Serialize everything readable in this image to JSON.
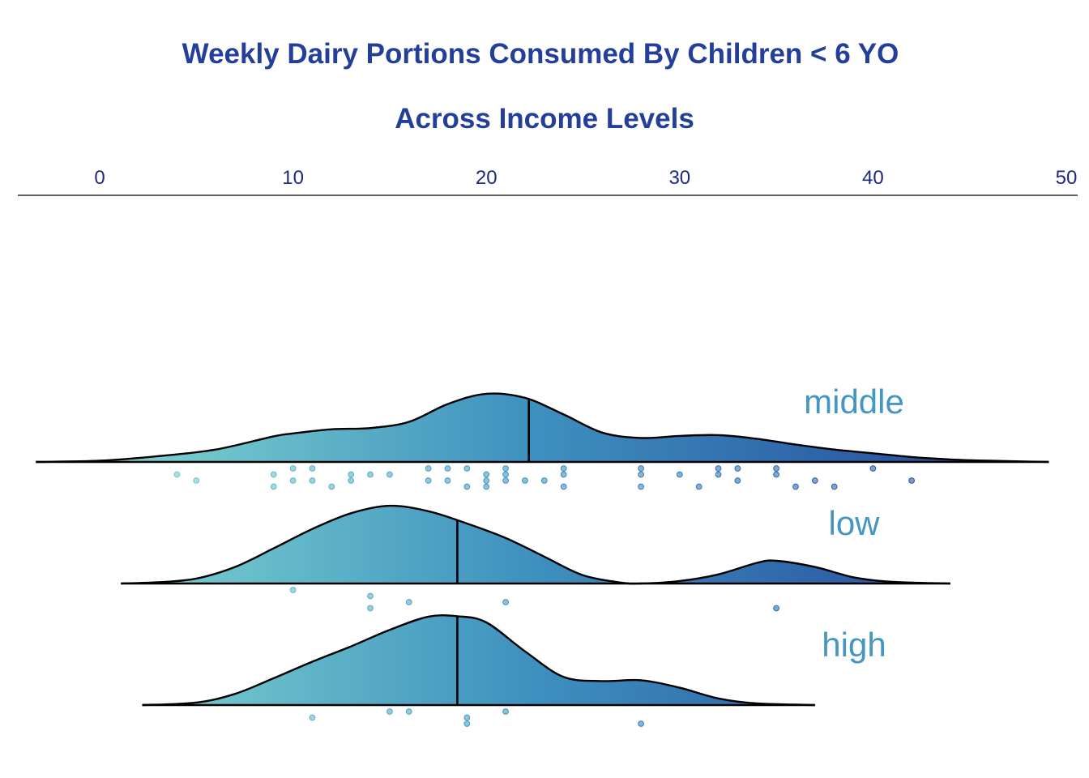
{
  "chart_data": {
    "type": "ridgeline",
    "title": "Weekly Dairy Portions Consumed By Children < 6 YO",
    "subtitle": "Across Income Levels",
    "x_axis": {
      "position": "top",
      "range": [
        -4.2,
        50
      ],
      "ticks": [
        0,
        10,
        20,
        30,
        40,
        50
      ]
    },
    "colors": {
      "low_end": "#8be3d3",
      "mid": "#3d8fbe",
      "high_end": "#223f96",
      "outline": "#000000",
      "label": "#4596c2",
      "title": "#233f9a",
      "tick": "#1f2a7a"
    },
    "series": [
      {
        "name": "middle",
        "median": 22.2,
        "density_range": [
          -3.3,
          49.1
        ],
        "density": [
          [
            -3.3,
            0
          ],
          [
            0,
            0.003
          ],
          [
            3,
            0.014
          ],
          [
            6,
            0.03
          ],
          [
            9,
            0.062
          ],
          [
            10,
            0.069
          ],
          [
            12,
            0.079
          ],
          [
            14,
            0.082
          ],
          [
            16,
            0.097
          ],
          [
            18,
            0.14
          ],
          [
            20,
            0.165
          ],
          [
            22,
            0.155
          ],
          [
            24,
            0.115
          ],
          [
            26,
            0.071
          ],
          [
            28,
            0.058
          ],
          [
            30,
            0.063
          ],
          [
            32,
            0.065
          ],
          [
            34,
            0.056
          ],
          [
            36,
            0.042
          ],
          [
            38,
            0.03
          ],
          [
            40,
            0.021
          ],
          [
            42,
            0.012
          ],
          [
            44,
            0.006
          ],
          [
            46,
            0.003
          ],
          [
            49.1,
            0
          ]
        ],
        "points": [
          [
            4,
            1
          ],
          [
            5,
            2
          ],
          [
            9,
            1
          ],
          [
            9,
            3
          ],
          [
            10,
            0
          ],
          [
            10,
            2
          ],
          [
            11,
            0
          ],
          [
            11,
            2
          ],
          [
            12,
            3
          ],
          [
            13,
            1
          ],
          [
            13,
            2
          ],
          [
            14,
            1
          ],
          [
            15,
            1
          ],
          [
            17,
            0
          ],
          [
            17,
            2
          ],
          [
            18,
            0
          ],
          [
            18,
            2
          ],
          [
            19,
            0
          ],
          [
            19,
            3
          ],
          [
            20,
            1
          ],
          [
            20,
            2
          ],
          [
            20,
            3
          ],
          [
            21,
            0
          ],
          [
            21,
            1
          ],
          [
            21,
            2
          ],
          [
            22,
            2
          ],
          [
            23,
            2
          ],
          [
            24,
            0
          ],
          [
            24,
            1
          ],
          [
            24,
            3
          ],
          [
            28,
            0
          ],
          [
            28,
            1
          ],
          [
            28,
            3
          ],
          [
            30,
            1
          ],
          [
            31,
            3
          ],
          [
            32,
            0
          ],
          [
            32,
            1
          ],
          [
            33,
            0
          ],
          [
            33,
            2
          ],
          [
            35,
            0
          ],
          [
            35,
            1
          ],
          [
            36,
            3
          ],
          [
            37,
            2
          ],
          [
            38,
            3
          ],
          [
            40,
            0
          ],
          [
            42,
            2
          ]
        ]
      },
      {
        "name": "low",
        "median": 18.5,
        "density_range": [
          1.1,
          44.0
        ],
        "density": [
          [
            1.1,
            0
          ],
          [
            3,
            0.003
          ],
          [
            5,
            0.012
          ],
          [
            7,
            0.04
          ],
          [
            9,
            0.085
          ],
          [
            11,
            0.132
          ],
          [
            13,
            0.17
          ],
          [
            15,
            0.188
          ],
          [
            17,
            0.175
          ],
          [
            19,
            0.145
          ],
          [
            21,
            0.11
          ],
          [
            23,
            0.065
          ],
          [
            25,
            0.02
          ],
          [
            27,
            0.002
          ],
          [
            28,
            0.0
          ],
          [
            30,
            0.006
          ],
          [
            32,
            0.022
          ],
          [
            34,
            0.05
          ],
          [
            35,
            0.055
          ],
          [
            37,
            0.04
          ],
          [
            39,
            0.015
          ],
          [
            41,
            0.004
          ],
          [
            44,
            0
          ]
        ],
        "points": [
          [
            10,
            0
          ],
          [
            14,
            1
          ],
          [
            14,
            3
          ],
          [
            16,
            2
          ],
          [
            21,
            2
          ],
          [
            35,
            3
          ]
        ]
      },
      {
        "name": "high",
        "median": 18.5,
        "density_range": [
          2.2,
          37.0
        ],
        "density": [
          [
            2.2,
            0
          ],
          [
            5,
            0.006
          ],
          [
            7,
            0.027
          ],
          [
            9,
            0.065
          ],
          [
            11,
            0.105
          ],
          [
            13,
            0.142
          ],
          [
            15,
            0.182
          ],
          [
            17,
            0.214
          ],
          [
            18.5,
            0.215
          ],
          [
            20,
            0.2
          ],
          [
            22,
            0.13
          ],
          [
            24,
            0.068
          ],
          [
            26,
            0.058
          ],
          [
            28,
            0.06
          ],
          [
            30,
            0.042
          ],
          [
            32,
            0.016
          ],
          [
            34,
            0.004
          ],
          [
            37,
            0
          ]
        ],
        "points": [
          [
            11,
            1
          ],
          [
            15,
            0
          ],
          [
            16,
            0
          ],
          [
            19,
            1
          ],
          [
            19,
            2
          ],
          [
            21,
            0
          ],
          [
            28,
            2
          ]
        ]
      }
    ]
  }
}
